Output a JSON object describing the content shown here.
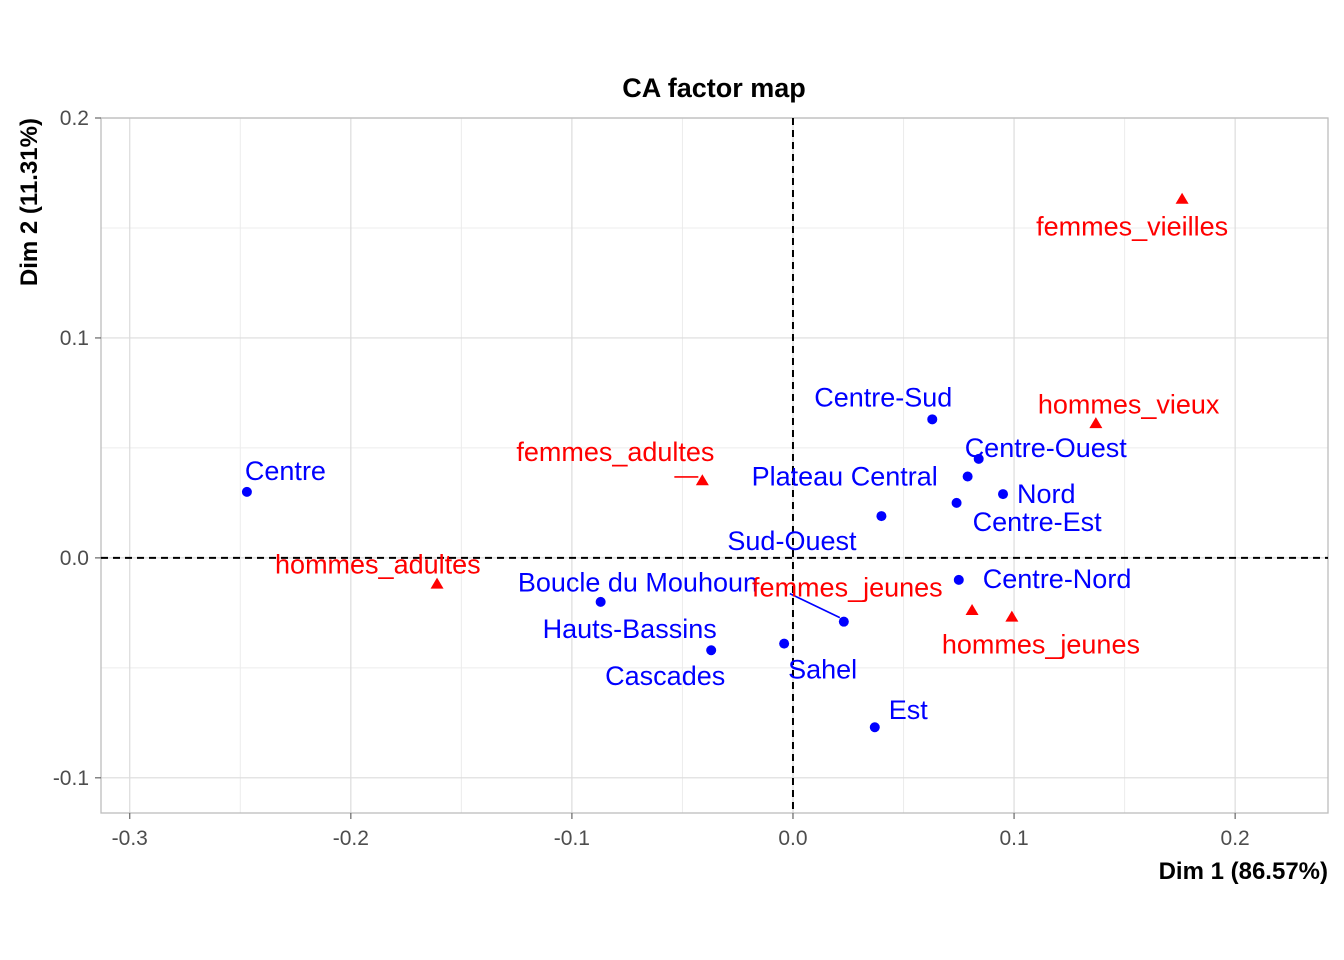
{
  "chart_data": {
    "type": "scatter",
    "title": "CA factor map",
    "xlabel": "Dim 1 (86.57%)",
    "ylabel": "Dim 2 (11.31%)",
    "xlim": [
      -0.313,
      0.242
    ],
    "ylim": [
      -0.116,
      0.2
    ],
    "x_ticks": [
      -0.3,
      -0.2,
      -0.1,
      0.0,
      0.1,
      0.2
    ],
    "x_tick_labels": [
      "-0.3",
      "-0.2",
      "-0.1",
      "0.0",
      "0.1",
      "0.2"
    ],
    "y_ticks": [
      -0.1,
      0.0,
      0.1,
      0.2
    ],
    "y_tick_labels": [
      "-0.1",
      "0.0",
      "0.1",
      "0.2"
    ],
    "grid": true,
    "reference_lines": {
      "x": 0,
      "y": 0,
      "style": "dashed"
    },
    "colors": {
      "rows": "#0000ff",
      "cols": "#ff0000"
    },
    "series": [
      {
        "marker": "circle",
        "color": "#0000ff",
        "points": [
          {
            "label": "Centre",
            "x": -0.247,
            "y": 0.03
          },
          {
            "label": "Centre-Sud",
            "x": 0.063,
            "y": 0.063
          },
          {
            "label": "Centre-Ouest",
            "x": 0.084,
            "y": 0.045
          },
          {
            "label": "Nord",
            "x": 0.095,
            "y": 0.029
          },
          {
            "label": "Plateau Central",
            "x": 0.079,
            "y": 0.037
          },
          {
            "label": "Centre-Est",
            "x": 0.074,
            "y": 0.025
          },
          {
            "label": "Sud-Ouest",
            "x": 0.04,
            "y": 0.019
          },
          {
            "label": "Centre-Nord",
            "x": 0.075,
            "y": -0.01
          },
          {
            "label": "Boucle du Mouhoun",
            "x": 0.023,
            "y": -0.029
          },
          {
            "label": "Hauts-Bassins",
            "x": -0.087,
            "y": -0.02
          },
          {
            "label": "Cascades",
            "x": -0.037,
            "y": -0.042
          },
          {
            "label": "Sahel",
            "x": -0.004,
            "y": -0.039
          },
          {
            "label": "Est",
            "x": 0.037,
            "y": -0.077
          }
        ]
      },
      {
        "marker": "triangle",
        "color": "#ff0000",
        "points": [
          {
            "label": "femmes_vieilles",
            "x": 0.176,
            "y": 0.163
          },
          {
            "label": "hommes_vieux",
            "x": 0.137,
            "y": 0.061
          },
          {
            "label": "femmes_adultes",
            "x": -0.041,
            "y": 0.035
          },
          {
            "label": "hommes_adultes",
            "x": -0.161,
            "y": -0.012
          },
          {
            "label": "femmes_jeunes",
            "x": 0.081,
            "y": -0.024
          },
          {
            "label": "hommes_jeunes",
            "x": 0.099,
            "y": -0.027
          }
        ]
      }
    ]
  }
}
